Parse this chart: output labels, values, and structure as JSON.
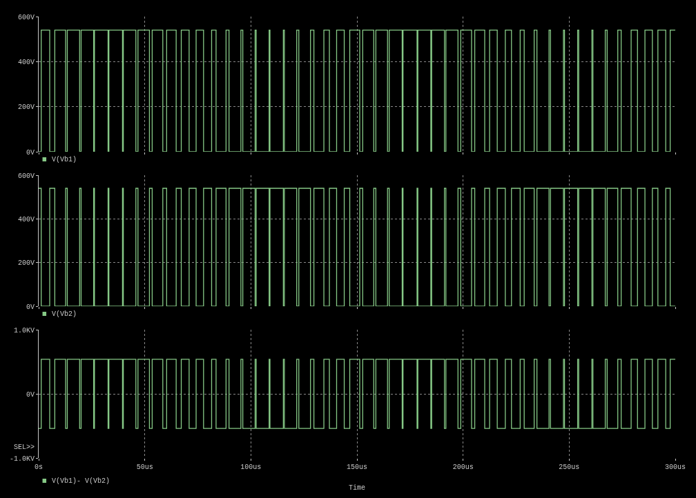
{
  "chart_data": [
    {
      "type": "step",
      "x": [
        0,
        1.2,
        5.2,
        7.6,
        12.7,
        13.5,
        19.3,
        20.0,
        25.9,
        26.3,
        32.7,
        33.1,
        39.5,
        39.9,
        45.8,
        46.8,
        52.2,
        53.5,
        58.5,
        60.3,
        64.8,
        67.2,
        70.9,
        74.2,
        77.7,
        81.5,
        83.6,
        88.3,
        89.7,
        95.3,
        96.2,
        102.0,
        102.5,
        108.6,
        109.0,
        115.3,
        115.8,
        121.6,
        122.6,
        128.1,
        129.7,
        134.4,
        137.0,
        140.4,
        144.0,
        146.6,
        151.3,
        152.7,
        157.9,
        158.9,
        164.4,
        165.2,
        171.3,
        171.7,
        178.3,
        178.7,
        184.8,
        185.2,
        191.2,
        191.9,
        197.6,
        198.9,
        204.0,
        205.5,
        210.2,
        212.5,
        216.1,
        219.9,
        222.8,
        226.9,
        228.8,
        233.5,
        234.8,
        240.5,
        241.2,
        247.3,
        247.8,
        254.0,
        254.5,
        260.7,
        261.2,
        267.0,
        267.9,
        272.9,
        274.5,
        279.2,
        282.2,
        285.7,
        289.2,
        291.8,
        295.5,
        297.6,
        300
      ],
      "series": [
        {
          "name": "V(Vb1)",
          "color": "#86c986",
          "values": [
            0,
            540,
            0,
            540,
            0,
            540,
            0,
            540,
            0,
            540,
            0,
            540,
            0,
            540,
            0,
            540,
            0,
            540,
            0,
            540,
            0,
            540,
            0,
            540,
            0,
            540,
            0,
            540,
            0,
            540,
            0,
            540,
            0,
            540,
            0,
            540,
            0,
            540,
            0,
            540,
            0,
            540,
            0,
            540,
            0,
            540,
            0,
            540,
            0,
            540,
            0,
            540,
            0,
            540,
            0,
            540,
            0,
            540,
            0,
            540,
            0,
            540,
            0,
            540,
            0,
            540,
            0,
            540,
            0,
            540,
            0,
            540,
            0,
            540,
            0,
            540,
            0,
            540,
            0,
            540,
            0,
            540,
            0,
            540,
            0,
            540,
            0,
            540,
            0,
            540,
            0,
            540,
            540
          ]
        }
      ],
      "xlim": [
        0,
        300
      ],
      "xticks": [
        {
          "value": 0,
          "label": null
        },
        {
          "value": 50,
          "label": null
        },
        {
          "value": 100,
          "label": null
        },
        {
          "value": 150,
          "label": null
        },
        {
          "value": 200,
          "label": null
        },
        {
          "value": 250,
          "label": null
        },
        {
          "value": 300,
          "label": null
        }
      ],
      "ylim": [
        0,
        600
      ],
      "yticks": [
        {
          "value": 0,
          "label": "0V"
        },
        {
          "value": 200,
          "label": "200V"
        },
        {
          "value": 400,
          "label": "400V"
        },
        {
          "value": 600,
          "label": "600V"
        }
      ],
      "tick_labels": "y",
      "grid": true
    },
    {
      "type": "step",
      "x": [
        0,
        1.2,
        5.2,
        7.6,
        12.7,
        13.5,
        19.3,
        20.0,
        25.9,
        26.3,
        32.7,
        33.1,
        39.5,
        39.9,
        45.8,
        46.8,
        52.2,
        53.5,
        58.5,
        60.3,
        64.8,
        67.2,
        70.9,
        74.2,
        77.7,
        81.5,
        83.6,
        88.3,
        89.7,
        95.3,
        96.2,
        102.0,
        102.5,
        108.6,
        109.0,
        115.3,
        115.8,
        121.6,
        122.6,
        128.1,
        129.7,
        134.4,
        137.0,
        140.4,
        144.0,
        146.6,
        151.3,
        152.7,
        157.9,
        158.9,
        164.4,
        165.2,
        171.3,
        171.7,
        178.3,
        178.7,
        184.8,
        185.2,
        191.2,
        191.9,
        197.6,
        198.9,
        204.0,
        205.5,
        210.2,
        212.5,
        216.1,
        219.9,
        222.8,
        226.9,
        228.8,
        233.5,
        234.8,
        240.5,
        241.2,
        247.3,
        247.8,
        254.0,
        254.5,
        260.7,
        261.2,
        267.0,
        267.9,
        272.9,
        274.5,
        279.2,
        282.2,
        285.7,
        289.2,
        291.8,
        295.5,
        297.6,
        300
      ],
      "series": [
        {
          "name": "V(Vb2)",
          "color": "#86c986",
          "values": [
            540,
            0,
            540,
            0,
            540,
            0,
            540,
            0,
            540,
            0,
            540,
            0,
            540,
            0,
            540,
            0,
            540,
            0,
            540,
            0,
            540,
            0,
            540,
            0,
            540,
            0,
            540,
            0,
            540,
            0,
            540,
            0,
            540,
            0,
            540,
            0,
            540,
            0,
            540,
            0,
            540,
            0,
            540,
            0,
            540,
            0,
            540,
            0,
            540,
            0,
            540,
            0,
            540,
            0,
            540,
            0,
            540,
            0,
            540,
            0,
            540,
            0,
            540,
            0,
            540,
            0,
            540,
            0,
            540,
            0,
            540,
            0,
            540,
            0,
            540,
            0,
            540,
            0,
            540,
            0,
            540,
            0,
            540,
            0,
            540,
            0,
            540,
            0,
            540,
            0,
            540,
            0,
            0
          ]
        }
      ],
      "xlim": [
        0,
        300
      ],
      "xticks": [
        {
          "value": 0,
          "label": null
        },
        {
          "value": 50,
          "label": null
        },
        {
          "value": 100,
          "label": null
        },
        {
          "value": 150,
          "label": null
        },
        {
          "value": 200,
          "label": null
        },
        {
          "value": 250,
          "label": null
        },
        {
          "value": 300,
          "label": null
        }
      ],
      "ylim": [
        0,
        600
      ],
      "yticks": [
        {
          "value": 0,
          "label": "0V"
        },
        {
          "value": 200,
          "label": "200V"
        },
        {
          "value": 400,
          "label": "400V"
        },
        {
          "value": 600,
          "label": "600V"
        }
      ],
      "tick_labels": "y",
      "grid": true
    },
    {
      "type": "step",
      "x": [
        0,
        1.2,
        5.2,
        7.6,
        12.7,
        13.5,
        19.3,
        20.0,
        25.9,
        26.3,
        32.7,
        33.1,
        39.5,
        39.9,
        45.8,
        46.8,
        52.2,
        53.5,
        58.5,
        60.3,
        64.8,
        67.2,
        70.9,
        74.2,
        77.7,
        81.5,
        83.6,
        88.3,
        89.7,
        95.3,
        96.2,
        102.0,
        102.5,
        108.6,
        109.0,
        115.3,
        115.8,
        121.6,
        122.6,
        128.1,
        129.7,
        134.4,
        137.0,
        140.4,
        144.0,
        146.6,
        151.3,
        152.7,
        157.9,
        158.9,
        164.4,
        165.2,
        171.3,
        171.7,
        178.3,
        178.7,
        184.8,
        185.2,
        191.2,
        191.9,
        197.6,
        198.9,
        204.0,
        205.5,
        210.2,
        212.5,
        216.1,
        219.9,
        222.8,
        226.9,
        228.8,
        233.5,
        234.8,
        240.5,
        241.2,
        247.3,
        247.8,
        254.0,
        254.5,
        260.7,
        261.2,
        267.0,
        267.9,
        272.9,
        274.5,
        279.2,
        282.2,
        285.7,
        289.2,
        291.8,
        295.5,
        297.6,
        300
      ],
      "series": [
        {
          "name": "V(Vb1)- V(Vb2)",
          "color": "#86c986",
          "values": [
            -0.54,
            0.54,
            -0.54,
            0.54,
            -0.54,
            0.54,
            -0.54,
            0.54,
            -0.54,
            0.54,
            -0.54,
            0.54,
            -0.54,
            0.54,
            -0.54,
            0.54,
            -0.54,
            0.54,
            -0.54,
            0.54,
            -0.54,
            0.54,
            -0.54,
            0.54,
            -0.54,
            0.54,
            -0.54,
            0.54,
            -0.54,
            0.54,
            -0.54,
            0.54,
            -0.54,
            0.54,
            -0.54,
            0.54,
            -0.54,
            0.54,
            -0.54,
            0.54,
            -0.54,
            0.54,
            -0.54,
            0.54,
            -0.54,
            0.54,
            -0.54,
            0.54,
            -0.54,
            0.54,
            -0.54,
            0.54,
            -0.54,
            0.54,
            -0.54,
            0.54,
            -0.54,
            0.54,
            -0.54,
            0.54,
            -0.54,
            0.54,
            -0.54,
            0.54,
            -0.54,
            0.54,
            -0.54,
            0.54,
            -0.54,
            0.54,
            -0.54,
            0.54,
            -0.54,
            0.54,
            -0.54,
            0.54,
            -0.54,
            0.54,
            -0.54,
            0.54,
            -0.54,
            0.54,
            -0.54,
            0.54,
            -0.54,
            0.54,
            -0.54,
            0.54,
            -0.54,
            0.54,
            -0.54,
            0.54,
            0.54
          ]
        }
      ],
      "xlabel": "Time",
      "annotations": [
        "SEL>>"
      ],
      "xlim": [
        0,
        300
      ],
      "xticks": [
        {
          "value": 0,
          "label": "0s"
        },
        {
          "value": 50,
          "label": "50us"
        },
        {
          "value": 100,
          "label": "100us"
        },
        {
          "value": 150,
          "label": "150us"
        },
        {
          "value": 200,
          "label": "200us"
        },
        {
          "value": 250,
          "label": "250us"
        },
        {
          "value": 300,
          "label": "300us"
        }
      ],
      "ylim": [
        -1.0,
        1.0
      ],
      "yticks": [
        {
          "value": -1.0,
          "label": "-1.0KV"
        },
        {
          "value": 0,
          "label": "0V"
        },
        {
          "value": 1.0,
          "label": "1.0KV"
        }
      ],
      "grid": true
    }
  ]
}
